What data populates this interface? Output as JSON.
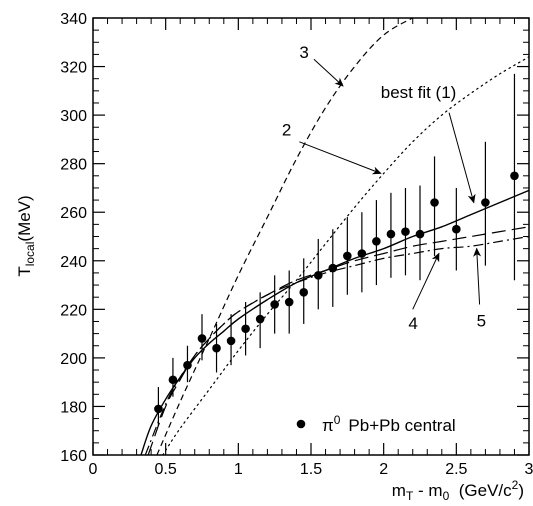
{
  "chart_data": {
    "type": "scatter",
    "title": "",
    "xlabel": "m_T - m_0 (GeV/c^2)",
    "ylabel": "T_local (MeV)",
    "xlim": [
      0,
      3
    ],
    "ylim": [
      160,
      340
    ],
    "x_ticks": [
      0,
      0.5,
      1,
      1.5,
      2,
      2.5,
      3
    ],
    "x_tick_labels": [
      "0",
      "0.5",
      "1",
      "1.5",
      "2",
      "2.5",
      "3"
    ],
    "y_ticks": [
      160,
      180,
      200,
      220,
      240,
      260,
      280,
      300,
      320,
      340
    ],
    "y_tick_labels": [
      "160",
      "180",
      "200",
      "220",
      "240",
      "260",
      "280",
      "300",
      "320",
      "340"
    ],
    "x_minor_step": 0.1,
    "y_minor_step": 5,
    "grid": false,
    "legend_position": "bottom-right",
    "legend_label_main": "π",
    "legend_label_sup": "0",
    "legend_label_rest": "Pb+Pb central",
    "axis_text": {
      "y_main": "T",
      "y_sub": "local",
      "y_unit": "(MeV)",
      "x_main": "m",
      "x_sub1": "T",
      "x_mid": " - m",
      "x_sub2": "0",
      "x_unit_open": "  (GeV/c",
      "x_unit_sup": "2",
      "x_unit_close": ")"
    },
    "series": [
      {
        "name": "π0 Pb+Pb central",
        "type": "scatter",
        "points": [
          {
            "x": 0.45,
            "y": 179,
            "lo": 172,
            "hi": 188
          },
          {
            "x": 0.55,
            "y": 191,
            "lo": 184,
            "hi": 200
          },
          {
            "x": 0.65,
            "y": 197,
            "lo": 190,
            "hi": 205
          },
          {
            "x": 0.75,
            "y": 208,
            "lo": 199,
            "hi": 218
          },
          {
            "x": 0.85,
            "y": 204,
            "lo": 194,
            "hi": 214
          },
          {
            "x": 0.95,
            "y": 207,
            "lo": 197,
            "hi": 218
          },
          {
            "x": 1.05,
            "y": 212,
            "lo": 201,
            "hi": 223
          },
          {
            "x": 1.15,
            "y": 216,
            "lo": 204,
            "hi": 227
          },
          {
            "x": 1.25,
            "y": 222,
            "lo": 210,
            "hi": 234
          },
          {
            "x": 1.35,
            "y": 223,
            "lo": 210,
            "hi": 236
          },
          {
            "x": 1.45,
            "y": 227,
            "lo": 214,
            "hi": 241
          },
          {
            "x": 1.55,
            "y": 234,
            "lo": 220,
            "hi": 249
          },
          {
            "x": 1.65,
            "y": 237,
            "lo": 221,
            "hi": 253
          },
          {
            "x": 1.75,
            "y": 242,
            "lo": 226,
            "hi": 258
          },
          {
            "x": 1.85,
            "y": 243,
            "lo": 227,
            "hi": 260
          },
          {
            "x": 1.95,
            "y": 248,
            "lo": 230,
            "hi": 265
          },
          {
            "x": 2.05,
            "y": 251,
            "lo": 233,
            "hi": 268
          },
          {
            "x": 2.15,
            "y": 252,
            "lo": 234,
            "hi": 270
          },
          {
            "x": 2.25,
            "y": 251,
            "lo": 232,
            "hi": 271
          },
          {
            "x": 2.35,
            "y": 264,
            "lo": 242,
            "hi": 283
          },
          {
            "x": 2.5,
            "y": 253,
            "lo": 236,
            "hi": 270
          },
          {
            "x": 2.7,
            "y": 264,
            "lo": 238,
            "hi": 289
          },
          {
            "x": 2.9,
            "y": 275,
            "lo": 232,
            "hi": 317
          }
        ]
      },
      {
        "name": "best fit (1)",
        "type": "line",
        "style": "solid",
        "x": [
          0.33,
          0.4,
          0.5,
          0.6,
          0.7,
          0.8,
          0.9,
          1.0,
          1.2,
          1.4,
          1.6,
          1.8,
          2.0,
          2.2,
          2.4,
          2.6,
          2.8,
          3.0
        ],
        "y": [
          160,
          172,
          183,
          192,
          200,
          206,
          211,
          216,
          224,
          231,
          236,
          241,
          245,
          250,
          254,
          259,
          264,
          269
        ]
      },
      {
        "name": "2",
        "type": "line",
        "style": "dotted",
        "x": [
          0.48,
          0.6,
          0.8,
          1.0,
          1.2,
          1.4,
          1.6,
          1.8,
          2.0,
          2.2,
          2.4,
          2.6,
          2.8,
          3.0
        ],
        "y": [
          160,
          171,
          187,
          203,
          218,
          232,
          247,
          262,
          276,
          289,
          300,
          309,
          317,
          324
        ]
      },
      {
        "name": "3",
        "type": "line",
        "style": "dashed",
        "x": [
          0.44,
          0.6,
          0.8,
          1.0,
          1.2,
          1.4,
          1.6,
          1.8,
          2.0,
          2.2,
          2.25
        ],
        "y": [
          160,
          182,
          208,
          234,
          258,
          282,
          303,
          320,
          333,
          340,
          341
        ]
      },
      {
        "name": "4",
        "type": "line",
        "style": "long-dash",
        "x": [
          0.38,
          0.5,
          0.6,
          0.7,
          0.8,
          0.9,
          1.0,
          1.2,
          1.4,
          1.6,
          1.8,
          2.0,
          2.2,
          2.4,
          2.6,
          2.8,
          3.0
        ],
        "y": [
          160,
          180,
          191,
          201,
          208,
          214,
          219,
          226,
          232,
          236,
          240,
          243,
          246,
          248,
          250,
          252,
          254
        ]
      },
      {
        "name": "5",
        "type": "line",
        "style": "dash-dot",
        "x": [
          0.36,
          0.5,
          0.6,
          0.7,
          0.8,
          0.9,
          1.0,
          1.2,
          1.4,
          1.6,
          1.8,
          2.0,
          2.2,
          2.4,
          2.6,
          2.8,
          3.0
        ],
        "y": [
          160,
          181,
          192,
          201,
          208,
          214,
          219,
          226,
          231,
          235,
          238,
          241,
          243,
          245,
          246,
          248,
          250
        ]
      }
    ],
    "annotations": [
      {
        "text": "3",
        "name": "label-3",
        "x": 1.42,
        "y": 323.5,
        "arrow_from": [
          1.52,
          323
        ],
        "arrow_to": [
          1.72,
          312
        ]
      },
      {
        "text": "2",
        "name": "label-2",
        "x": 1.3,
        "y": 291.5,
        "arrow_from": [
          1.42,
          289
        ],
        "arrow_to": [
          1.98,
          276
        ]
      },
      {
        "text": "best fit (1)",
        "name": "label-best-fit",
        "x": 1.98,
        "y": 307,
        "arrow_from": [
          2.45,
          301
        ],
        "arrow_to": [
          2.62,
          264
        ]
      },
      {
        "text": "4",
        "name": "label-4",
        "x": 2.17,
        "y": 212,
        "arrow_from": [
          2.2,
          220
        ],
        "arrow_to": [
          2.38,
          243
        ]
      },
      {
        "text": "5",
        "name": "label-5",
        "x": 2.64,
        "y": 213,
        "arrow_from": [
          2.66,
          222
        ],
        "arrow_to": [
          2.64,
          245
        ]
      }
    ]
  }
}
